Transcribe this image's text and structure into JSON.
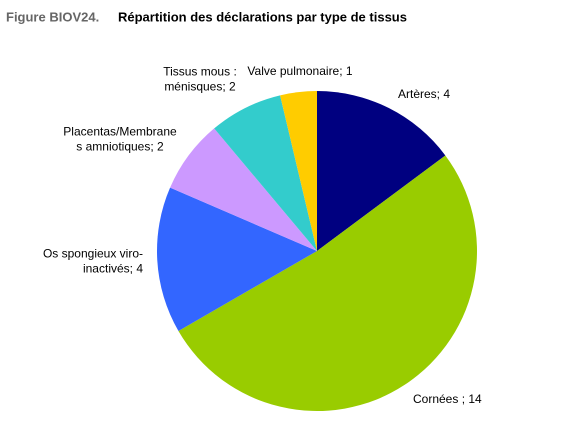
{
  "chart_data": {
    "type": "pie",
    "title_prefix": "Figure BIOV24.",
    "title": "Répartition des déclarations par type de tissus",
    "categories": [
      "Artères",
      "Cornées",
      "Os spongieux viro-inactivés",
      "Placentas/Membranes amniotiques",
      "Tissus mous : ménisques",
      "Valve pulmonaire"
    ],
    "values": [
      4,
      14,
      4,
      2,
      2,
      1
    ],
    "value_labels": [
      "Artères; 4",
      "Cornées ; 14",
      "Os spongieux viro-\ninactivés; 4",
      "Placentas/Membrane\ns amniotiques; 2",
      "Tissus mous :\nménisques; 2",
      "Valve pulmonaire; 1"
    ],
    "colors": [
      "#000080",
      "#99cc00",
      "#3366ff",
      "#cc99ff",
      "#33cccc",
      "#ffcc00"
    ]
  }
}
